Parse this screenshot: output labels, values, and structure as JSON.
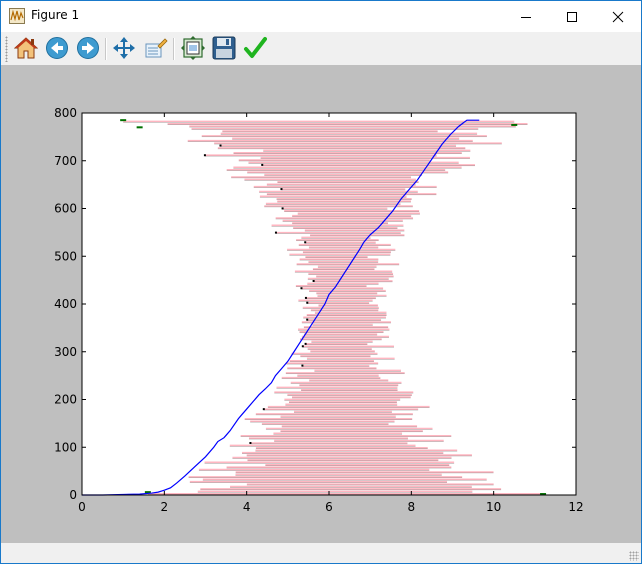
{
  "window": {
    "title": "Figure 1",
    "icon": "matplotlib-figure-icon"
  },
  "toolbar": {
    "items": [
      {
        "name": "home",
        "icon": "home-icon"
      },
      {
        "name": "back",
        "icon": "back-arrow-icon"
      },
      {
        "name": "forward",
        "icon": "forward-arrow-icon"
      },
      {
        "name": "pan",
        "icon": "pan-move-icon"
      },
      {
        "name": "zoom",
        "icon": "zoom-rect-icon"
      },
      {
        "name": "configure-subplots",
        "icon": "subplots-icon"
      },
      {
        "name": "save",
        "icon": "floppy-disk-icon"
      },
      {
        "name": "edit-axis",
        "icon": "checkmark-icon"
      }
    ]
  },
  "chart_data": {
    "type": "line",
    "title": "",
    "xlabel": "",
    "ylabel": "",
    "xlim": [
      0,
      12
    ],
    "ylim": [
      0,
      800
    ],
    "xticks": [
      0,
      2,
      4,
      6,
      8,
      10,
      12
    ],
    "yticks": [
      0,
      100,
      200,
      300,
      400,
      500,
      600,
      700,
      800
    ],
    "grid": false,
    "legend": "none",
    "colors": {
      "cumulative_line": "#0000ff",
      "ranges": "#ffb6c1",
      "range_outline": "#000000",
      "edge_marks": "#007000"
    },
    "series": [
      {
        "kind": "line",
        "x": [
          0,
          0.5,
          1.0,
          1.4,
          1.7,
          1.85,
          2.0,
          2.15,
          2.3,
          2.5,
          2.75,
          3.0,
          3.2,
          3.3,
          3.45,
          3.5,
          3.6,
          3.8,
          3.9,
          4.0,
          4.15,
          4.3,
          4.45,
          4.6,
          4.7,
          4.85,
          5.0,
          5.15,
          5.3,
          5.45,
          5.6,
          5.75,
          5.9,
          6.0,
          6.15,
          6.3,
          6.45,
          6.6,
          6.75,
          6.85,
          7.0,
          7.2,
          7.35,
          7.55,
          7.75,
          7.95,
          8.15,
          8.35,
          8.55,
          8.75,
          8.95,
          9.15,
          9.35,
          9.65
        ],
        "y": [
          0,
          0,
          1,
          2,
          4,
          6,
          10,
          15,
          25,
          40,
          60,
          80,
          100,
          112,
          120,
          125,
          135,
          160,
          170,
          180,
          195,
          210,
          222,
          235,
          250,
          265,
          280,
          300,
          320,
          340,
          360,
          380,
          400,
          420,
          435,
          455,
          475,
          495,
          515,
          530,
          545,
          560,
          575,
          595,
          620,
          640,
          660,
          685,
          710,
          735,
          755,
          772,
          785,
          785
        ]
      }
    ],
    "ranges": {
      "description_note": "",
      "count": 155
    }
  }
}
